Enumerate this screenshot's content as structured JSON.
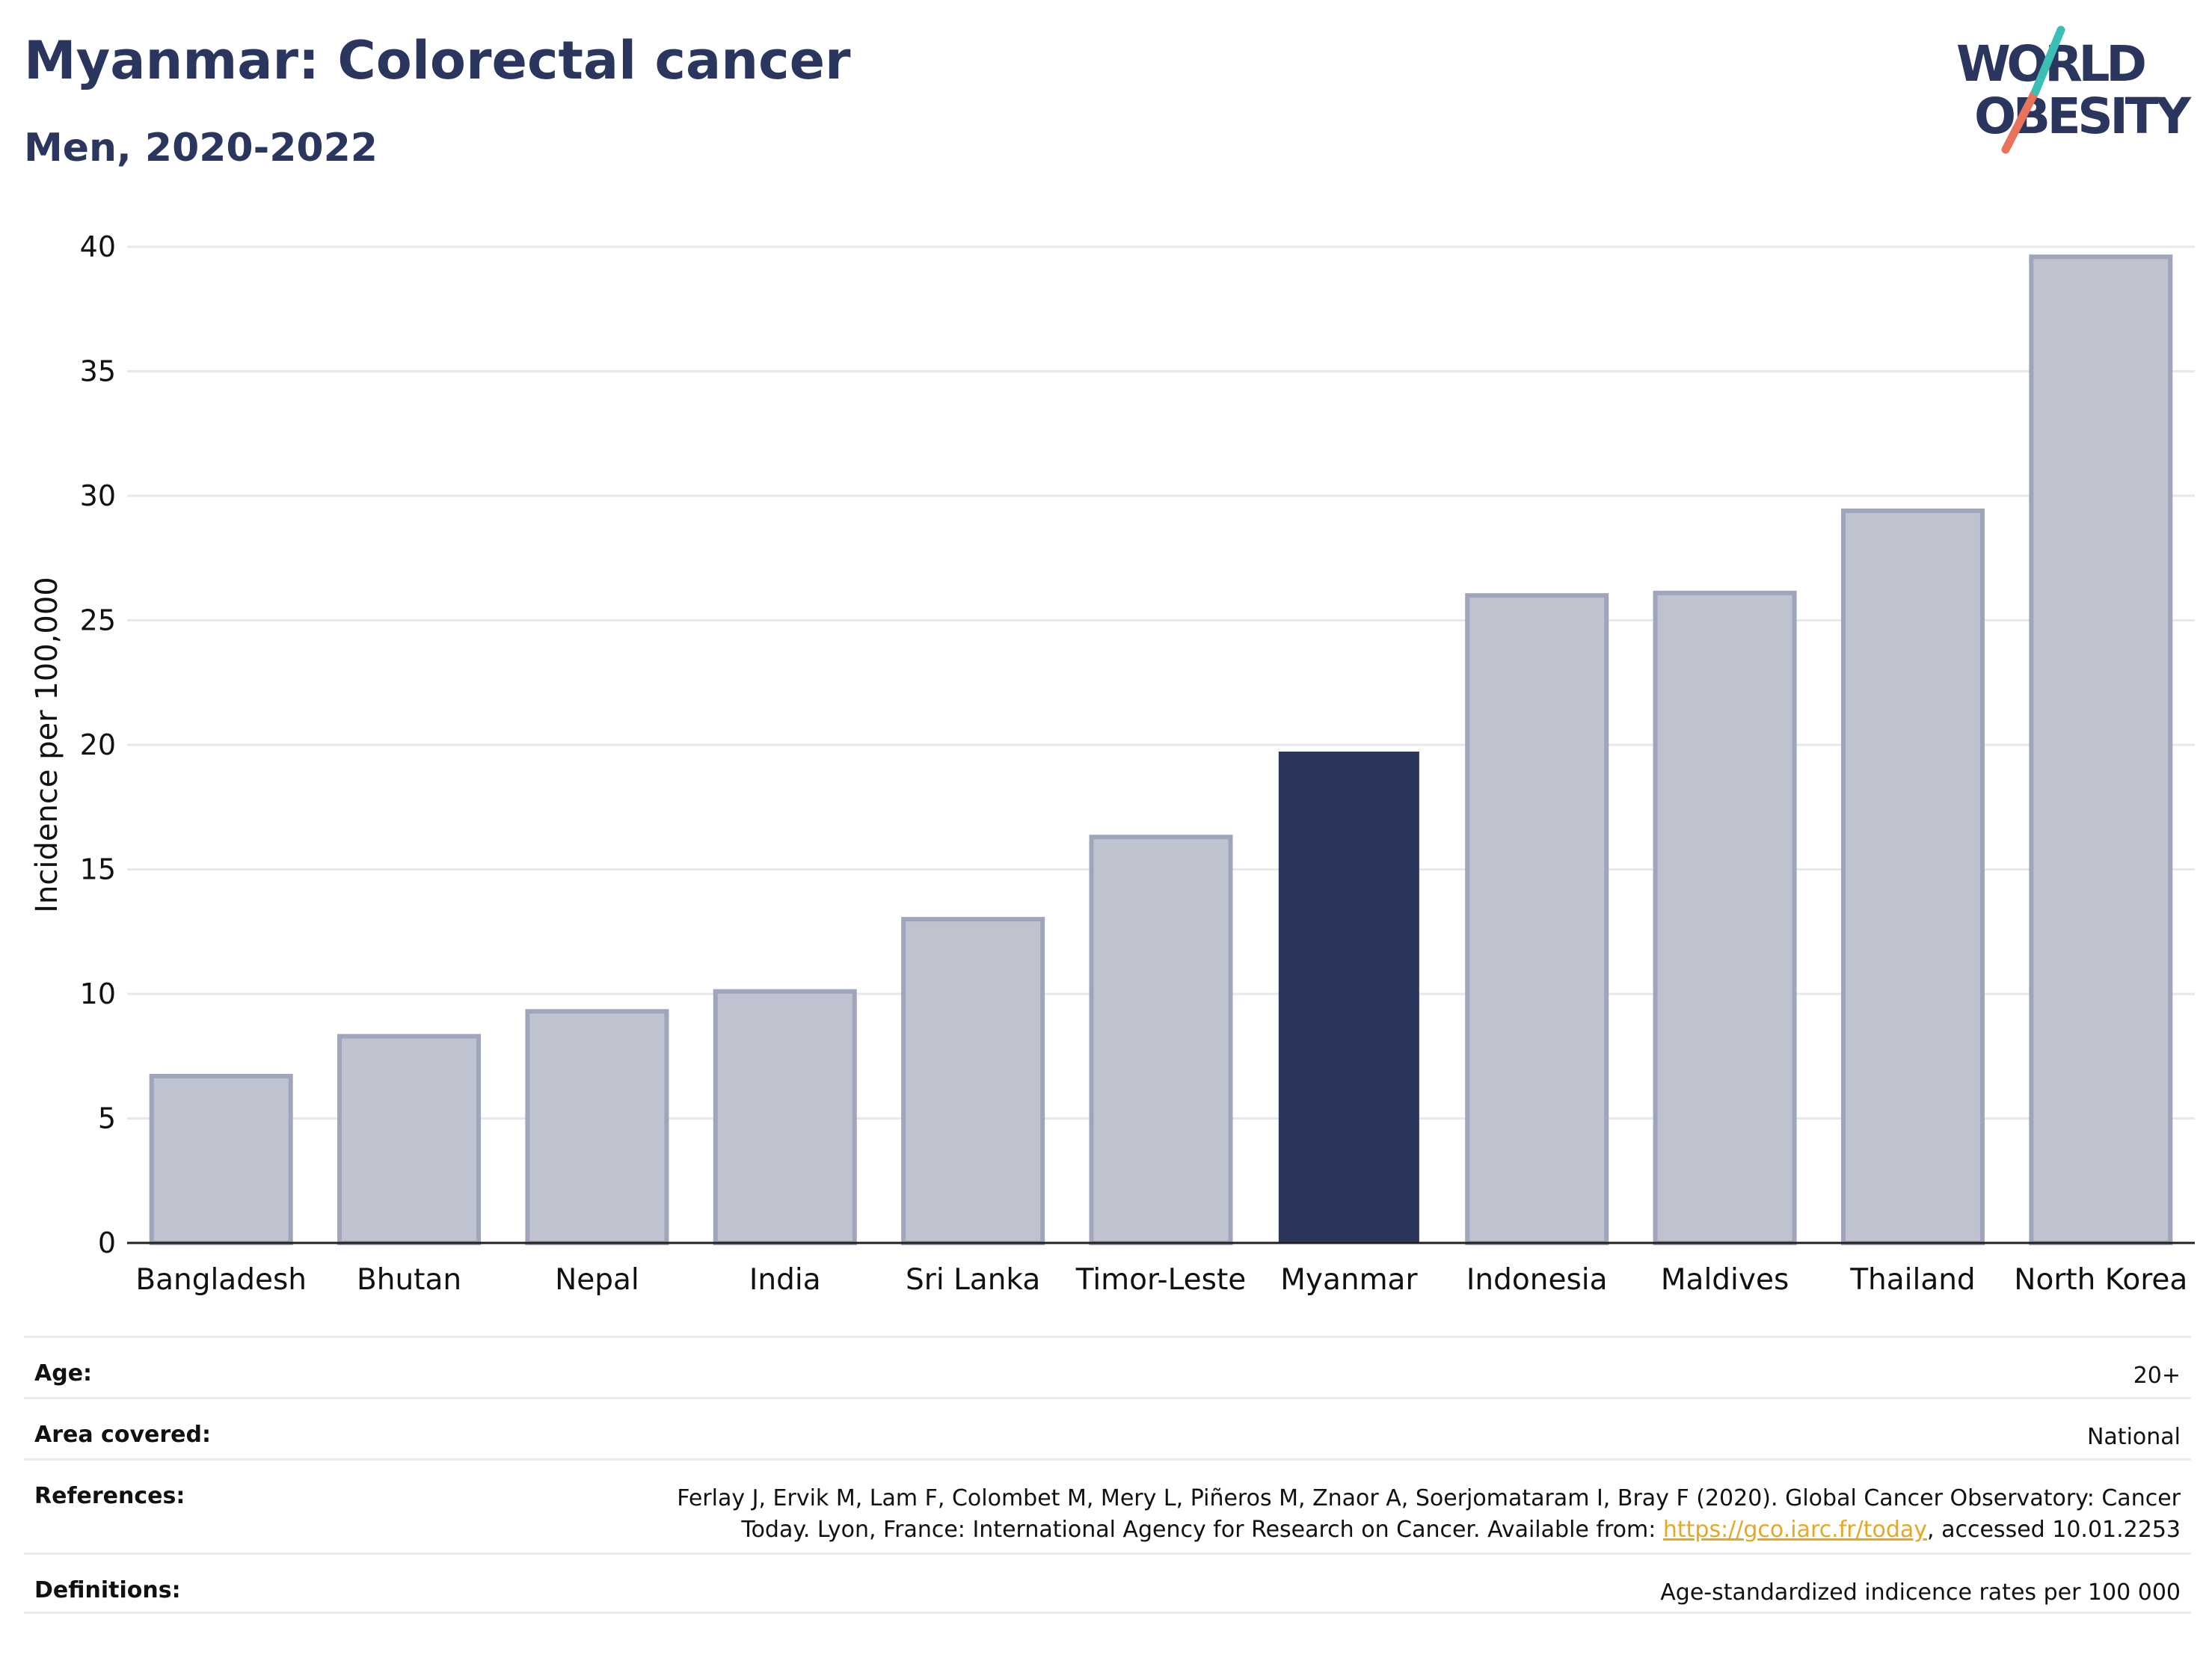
{
  "header": {
    "title": "Myanmar: Colorectal cancer",
    "subtitle": "Men, 2020-2022"
  },
  "logo": {
    "line1": "WORLD",
    "line2": "OBESITY",
    "text_color": "#2b365f",
    "slash_colors": [
      "#3bbfb5",
      "#e8735a"
    ]
  },
  "chart_data": {
    "type": "bar",
    "title": "Myanmar: Colorectal cancer",
    "subtitle": "Men, 2020-2022",
    "ylabel": "Incidence per 100,000",
    "xlabel": "",
    "ylim": [
      0,
      40
    ],
    "yticks": [
      0,
      5,
      10,
      15,
      20,
      25,
      30,
      35,
      40
    ],
    "grid": true,
    "highlight": "Myanmar",
    "highlight_color": "#2b365f",
    "bar_color": "#bfc3d0",
    "bar_edge_color": "#9fa5bb",
    "categories": [
      "Bangladesh",
      "Bhutan",
      "Nepal",
      "India",
      "Sri Lanka",
      "Timor-Leste",
      "Myanmar",
      "Indonesia",
      "Maldives",
      "Thailand",
      "North Korea"
    ],
    "values": [
      6.7,
      8.3,
      9.3,
      10.1,
      13.0,
      16.3,
      19.7,
      26.0,
      26.1,
      29.4,
      39.6
    ]
  },
  "info": {
    "rows": [
      {
        "label": "Age:",
        "value": "20+"
      },
      {
        "label": "Area covered:",
        "value": "National"
      },
      {
        "label": "References:",
        "value_line1": "Ferlay J, Ervik M, Lam F, Colombet M, Mery L, Piñeros M, Znaor A, Soerjomataram I, Bray F (2020). Global Cancer Observatory: Cancer",
        "value_line2_pre": "Today. Lyon, France: International Agency for Research on Cancer. Available from: ",
        "link": "https://gco.iarc.fr/today",
        "value_line2_post": ", accessed 10.01.2253"
      },
      {
        "label": "Definitions:",
        "value": "Age-standardized indicence rates per 100 000"
      }
    ]
  }
}
